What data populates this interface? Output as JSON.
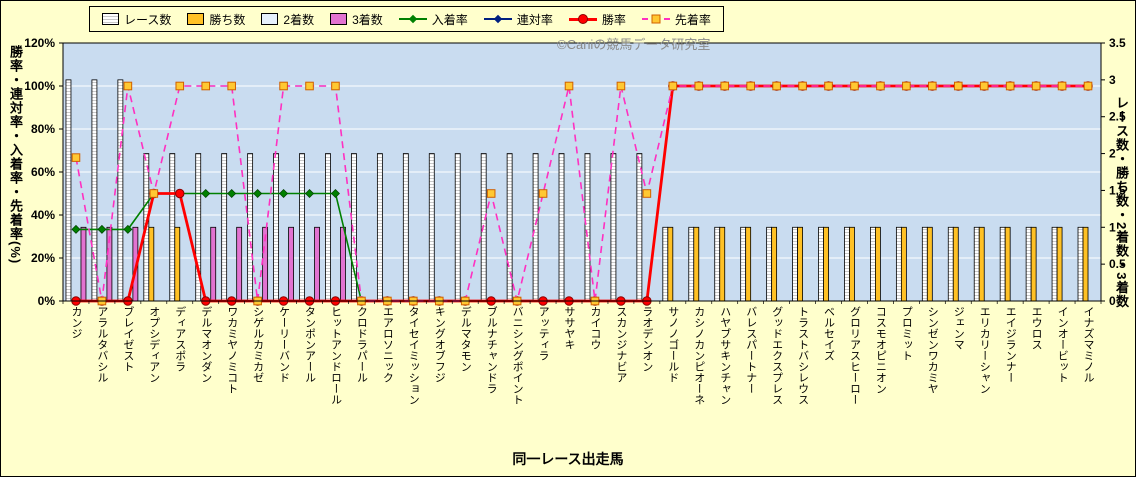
{
  "legend": {
    "items": [
      {
        "label": "レース数"
      },
      {
        "label": "勝ち数"
      },
      {
        "label": "2着数"
      },
      {
        "label": "3着数"
      },
      {
        "label": "入着率"
      },
      {
        "label": "連対率"
      },
      {
        "label": "勝率"
      },
      {
        "label": "先着率"
      }
    ]
  },
  "watermark": "©Caniの競馬データ研究室",
  "chart_data": {
    "type": "combo-bar-line",
    "title": "",
    "x_axis": {
      "title": "同一レース出走馬"
    },
    "left_axis": {
      "title": "勝率・連対率・入着率・先着率(%)",
      "min": 0,
      "max": 120,
      "step": 20,
      "format": "percent",
      "ticks": [
        "0%",
        "20%",
        "40%",
        "60%",
        "80%",
        "100%",
        "120%"
      ]
    },
    "right_axis": {
      "title": "レース数・勝ち数・2着数・3着数",
      "min": 0,
      "max": 3.5,
      "step": 0.5,
      "ticks": [
        "0",
        "0.5",
        "1",
        "1.5",
        "2",
        "2.5",
        "3",
        "3.5"
      ]
    },
    "grid": "horizontal-white",
    "legend_position": "top",
    "colors": {
      "background": "#FFFFCC",
      "plot_bg": "#C9DCF0",
      "race_bar": "#FFFFFF",
      "win_bar": "#FFC125",
      "second_bar": "#E6F1FC",
      "third_bar": "#E273D0",
      "place_rate_line": "#008000",
      "quinella_rate_line": "#002080",
      "win_rate_line": "#FF0000",
      "finish_ahead_line": "#FF30C0",
      "finish_ahead_marker": "#FFC832"
    },
    "categories": [
      "カンジ",
      "アラルタバシル",
      "ブレイゼスト",
      "オプシディアン",
      "ディアスポラ",
      "デルマオンダン",
      "ワカミヤノミコト",
      "シゲルカミカゼ",
      "ケーリーバンド",
      "タンポンアール",
      "ヒットアンドロール",
      "クロドラパール",
      "エアロソニック",
      "タイセイミッション",
      "キングオブフジ",
      "デルマタモン",
      "ブルナチャンドラ",
      "バニシングポイント",
      "アッティラ",
      "ササヤキ",
      "カイコウ",
      "スカンジナビア",
      "ラオデンオン",
      "サノノゴールド",
      "カシノカンピオーネ",
      "ハヤブサキンチャン",
      "バレスパートナー",
      "グッドエクスプレス",
      "トラストバシレウス",
      "ベルセイズ",
      "グロリアスヒーロー",
      "コスモオピニオン",
      "プロミット",
      "シンゼンワカミヤ",
      "ジェンマ",
      "エリカリーシャン",
      "エイジランナー",
      "エウロス",
      "インオービット",
      "イナズマミノル"
    ],
    "bar_series": [
      {
        "key": "races",
        "name": "レース数",
        "axis": "right",
        "pattern": "stripes",
        "color": "#FFFFFF",
        "values": [
          3,
          3,
          3,
          2,
          2,
          2,
          2,
          2,
          2,
          2,
          2,
          2,
          2,
          2,
          2,
          2,
          2,
          2,
          2,
          2,
          2,
          2,
          2,
          1,
          1,
          1,
          1,
          1,
          1,
          1,
          1,
          1,
          1,
          1,
          1,
          1,
          1,
          1,
          1,
          1
        ]
      },
      {
        "key": "wins",
        "name": "勝ち数",
        "axis": "right",
        "color": "#FFC125",
        "values": [
          0,
          0,
          0,
          1,
          1,
          0,
          0,
          0,
          0,
          0,
          0,
          0,
          0,
          0,
          0,
          0,
          0,
          0,
          0,
          0,
          0,
          0,
          0,
          1,
          1,
          1,
          1,
          1,
          1,
          1,
          1,
          1,
          1,
          1,
          1,
          1,
          1,
          1,
          1,
          1
        ]
      },
      {
        "key": "seconds",
        "name": "2着数",
        "axis": "right",
        "color": "#E6F1FC",
        "values": [
          0,
          0,
          0,
          0,
          0,
          0,
          0,
          0,
          0,
          0,
          0,
          0,
          0,
          0,
          0,
          0,
          0,
          0,
          0,
          0,
          0,
          0,
          0,
          0,
          0,
          0,
          0,
          0,
          0,
          0,
          0,
          0,
          0,
          0,
          0,
          0,
          0,
          0,
          0,
          0
        ]
      },
      {
        "key": "thirds",
        "name": "3着数",
        "axis": "right",
        "color": "#E273D0",
        "values": [
          1,
          1,
          1,
          0,
          0,
          1,
          1,
          1,
          1,
          1,
          1,
          0,
          0,
          0,
          0,
          0,
          0,
          0,
          0,
          0,
          0,
          0,
          0,
          0,
          0,
          0,
          0,
          0,
          0,
          0,
          0,
          0,
          0,
          0,
          0,
          0,
          0,
          0,
          0,
          0
        ]
      }
    ],
    "line_series": [
      {
        "key": "place_rate",
        "name": "入着率",
        "axis": "left",
        "color": "#008000",
        "line_width": 1.6,
        "marker": "diamond",
        "marker_fill": "#008000",
        "marker_stroke": "#004000",
        "values": [
          33.3,
          33.3,
          33.3,
          50,
          50,
          50,
          50,
          50,
          50,
          50,
          50,
          0,
          0,
          0,
          0,
          0,
          0,
          0,
          0,
          0,
          0,
          0,
          0,
          100,
          100,
          100,
          100,
          100,
          100,
          100,
          100,
          100,
          100,
          100,
          100,
          100,
          100,
          100,
          100,
          100
        ]
      },
      {
        "key": "quinella_rate",
        "name": "連対率",
        "axis": "left",
        "color": "#002080",
        "line_width": 1.6,
        "marker": "diamond",
        "marker_fill": "#002080",
        "marker_stroke": "#001040",
        "values": [
          0,
          0,
          0,
          50,
          50,
          0,
          0,
          0,
          0,
          0,
          0,
          0,
          0,
          0,
          0,
          0,
          0,
          0,
          0,
          0,
          0,
          0,
          0,
          100,
          100,
          100,
          100,
          100,
          100,
          100,
          100,
          100,
          100,
          100,
          100,
          100,
          100,
          100,
          100,
          100
        ]
      },
      {
        "key": "win_rate",
        "name": "勝率",
        "axis": "left",
        "color": "#FF0000",
        "line_width": 2.8,
        "marker": "circle",
        "marker_fill": "#FF0000",
        "marker_stroke": "#8B0000",
        "values": [
          0,
          0,
          0,
          50,
          50,
          0,
          0,
          0,
          0,
          0,
          0,
          0,
          0,
          0,
          0,
          0,
          0,
          0,
          0,
          0,
          0,
          0,
          0,
          100,
          100,
          100,
          100,
          100,
          100,
          100,
          100,
          100,
          100,
          100,
          100,
          100,
          100,
          100,
          100,
          100
        ]
      },
      {
        "key": "finish_ahead_rate",
        "name": "先着率",
        "axis": "left",
        "color": "#FF30C0",
        "line_width": 1.6,
        "dashed": true,
        "marker": "square",
        "marker_fill": "#FFC832",
        "marker_stroke": "#D06000",
        "values": [
          66.7,
          0,
          100,
          50,
          100,
          100,
          100,
          0,
          100,
          100,
          100,
          0,
          0,
          0,
          0,
          0,
          50,
          0,
          50,
          100,
          0,
          100,
          50,
          100,
          100,
          100,
          100,
          100,
          100,
          100,
          100,
          100,
          100,
          100,
          100,
          100,
          100,
          100,
          100,
          100
        ]
      }
    ],
    "line_draw_order": [
      1,
      0,
      2,
      3
    ]
  }
}
